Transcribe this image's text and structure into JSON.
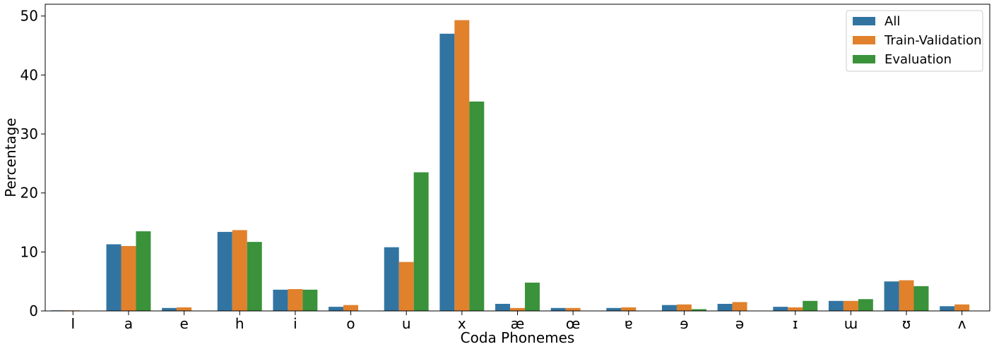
{
  "chart_data": {
    "type": "bar",
    "xlabel": "Coda Phonemes",
    "ylabel": "Percentage",
    "ylim": [
      0,
      52
    ],
    "yticks": [
      0,
      10,
      20,
      30,
      40,
      50
    ],
    "categories": [
      "I",
      "a",
      "e",
      "h",
      "i",
      "o",
      "u",
      "x",
      "æ",
      "œ",
      "ɐ",
      "ɘ",
      "ə",
      "ɪ",
      "ɯ",
      "ʊ",
      "ʌ"
    ],
    "series": [
      {
        "name": "All",
        "color": "#3274a1",
        "values": [
          0.1,
          11.3,
          0.5,
          13.4,
          3.6,
          0.7,
          10.8,
          47.0,
          1.2,
          0.5,
          0.5,
          1.0,
          1.2,
          0.7,
          1.7,
          5.0,
          0.8
        ]
      },
      {
        "name": "Train-Validation",
        "color": "#e1812c",
        "values": [
          0.1,
          11.0,
          0.6,
          13.7,
          3.7,
          1.0,
          8.3,
          49.3,
          0.5,
          0.5,
          0.6,
          1.1,
          1.5,
          0.6,
          1.7,
          5.2,
          1.1
        ]
      },
      {
        "name": "Evaluation",
        "color": "#3a923a",
        "values": [
          0,
          13.5,
          0,
          11.7,
          3.6,
          0,
          23.5,
          35.5,
          4.8,
          0,
          0,
          0.3,
          0,
          1.7,
          2.0,
          4.2,
          0
        ]
      }
    ],
    "legend_position": "top-right",
    "grid": false
  }
}
